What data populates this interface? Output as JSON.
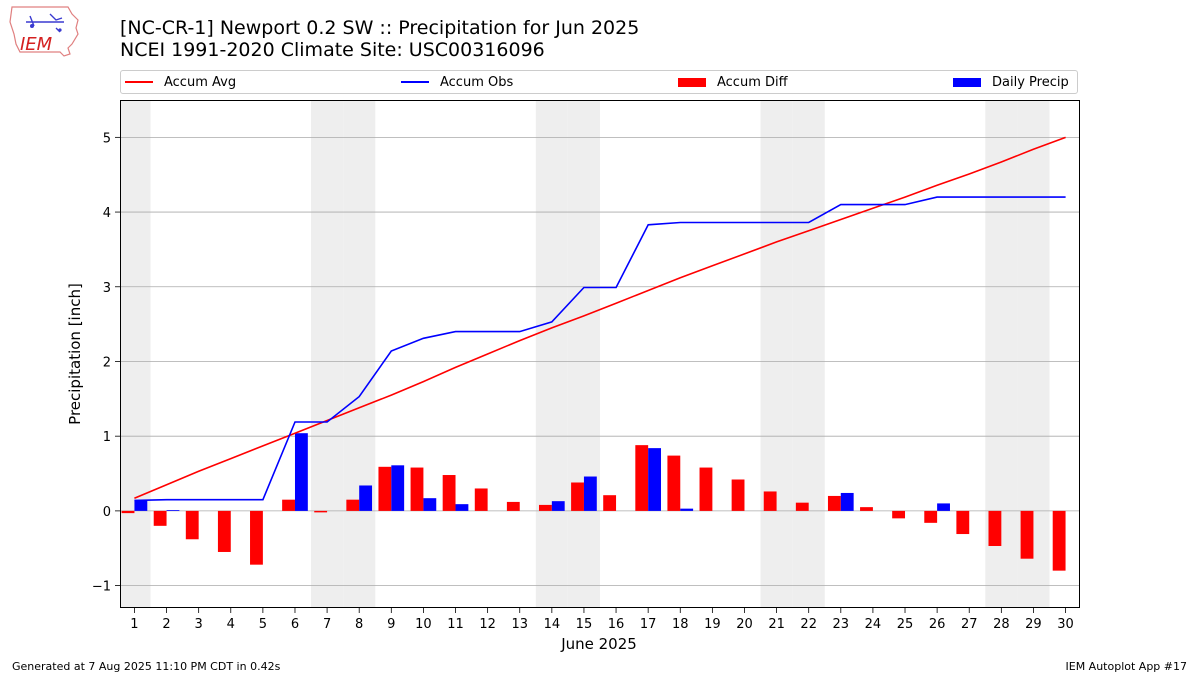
{
  "title_line1": "[NC-CR-1] Newport 0.2 SW :: Precipitation for Jun 2025",
  "title_line2": "NCEI 1991-2020 Climate Site: USC00316096",
  "logo_text": "IEM",
  "footer_left": "Generated at 7 Aug 2025 11:10 PM CDT in 0.42s",
  "footer_right": "IEM Autoplot App #17",
  "colors": {
    "accum_avg": "#ff0000",
    "accum_obs": "#0000ff",
    "accum_diff": "#ff0000",
    "daily_precip": "#0000ff",
    "weekend_shade": "#eeeeee",
    "grid": "#aaaaaa"
  },
  "chart_data": {
    "type": "bar",
    "xlabel": "June 2025",
    "ylabel": "Precipitation [inch]",
    "ylim": [
      -1.3,
      5.5
    ],
    "yticks": [
      -1,
      0,
      1,
      2,
      3,
      4,
      5
    ],
    "ytick_labels": [
      "−1",
      "0",
      "1",
      "2",
      "3",
      "4",
      "5"
    ],
    "grid": "horizontal",
    "legend_position": "top",
    "x": [
      1,
      2,
      3,
      4,
      5,
      6,
      7,
      8,
      9,
      10,
      11,
      12,
      13,
      14,
      15,
      16,
      17,
      18,
      19,
      20,
      21,
      22,
      23,
      24,
      25,
      26,
      27,
      28,
      29,
      30
    ],
    "weekend_days": [
      1,
      7,
      8,
      14,
      15,
      21,
      22,
      28,
      29
    ],
    "series": [
      {
        "name": "Accum Avg",
        "kind": "line",
        "values": [
          0.17,
          0.35,
          0.53,
          0.7,
          0.87,
          1.04,
          1.21,
          1.38,
          1.55,
          1.73,
          1.92,
          2.1,
          2.28,
          2.45,
          2.61,
          2.78,
          2.95,
          3.12,
          3.28,
          3.44,
          3.6,
          3.75,
          3.9,
          4.05,
          4.2,
          4.36,
          4.51,
          4.67,
          4.84,
          5.0
        ]
      },
      {
        "name": "Accum Obs",
        "kind": "line",
        "values": [
          0.14,
          0.15,
          0.15,
          0.15,
          0.15,
          1.19,
          1.19,
          1.53,
          2.14,
          2.31,
          2.4,
          2.4,
          2.4,
          2.53,
          2.99,
          2.99,
          3.83,
          3.86,
          3.86,
          3.86,
          3.86,
          3.86,
          4.1,
          4.1,
          4.1,
          4.2,
          4.2,
          4.2,
          4.2,
          4.2
        ]
      },
      {
        "name": "Accum Diff",
        "kind": "bar",
        "values": [
          -0.03,
          -0.2,
          -0.38,
          -0.55,
          -0.72,
          0.15,
          -0.02,
          0.15,
          0.59,
          0.58,
          0.48,
          0.3,
          0.12,
          0.08,
          0.38,
          0.21,
          0.88,
          0.74,
          0.58,
          0.42,
          0.26,
          0.11,
          0.2,
          0.05,
          -0.1,
          -0.16,
          -0.31,
          -0.47,
          -0.64,
          -0.8
        ]
      },
      {
        "name": "Daily Precip",
        "kind": "bar",
        "values": [
          0.14,
          0.01,
          0,
          0,
          0,
          1.04,
          0,
          0.34,
          0.61,
          0.17,
          0.09,
          0,
          0,
          0.13,
          0.46,
          0,
          0.84,
          0.03,
          0,
          0,
          0,
          0,
          0.24,
          0,
          0,
          0.1,
          0,
          0,
          0,
          0
        ]
      }
    ]
  }
}
